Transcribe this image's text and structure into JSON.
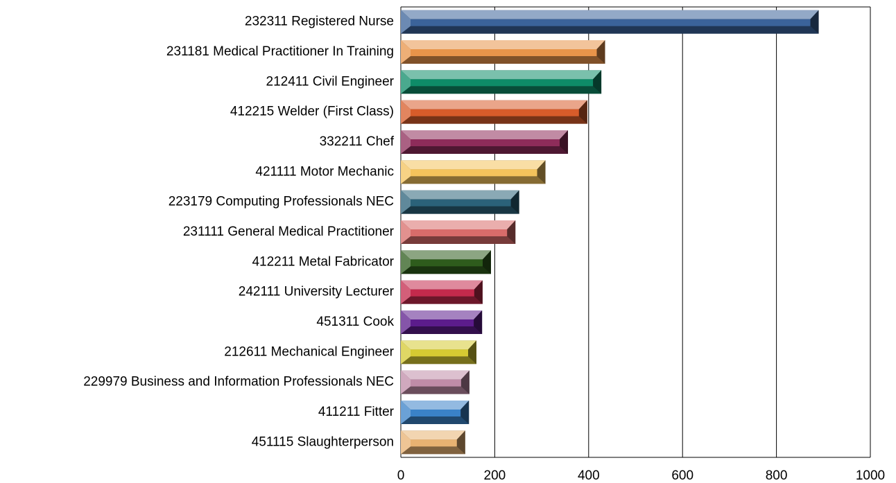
{
  "chart_data": {
    "type": "bar",
    "orientation": "horizontal",
    "categories": [
      "232311 Registered Nurse",
      "231181 Medical Practitioner In Training",
      "212411 Civil Engineer",
      "412215 Welder (First Class)",
      "332211 Chef",
      "421111 Motor Mechanic",
      "223179 Computing Professionals NEC",
      "231111 General Medical Practitioner",
      "412211 Metal Fabricator",
      "242111 University Lecturer",
      "451311 Cook",
      "212611 Mechanical Engineer",
      "229979 Business and Information Professionals NEC",
      "411211 Fitter",
      "451115 Slaughterperson"
    ],
    "values": [
      890,
      435,
      427,
      397,
      356,
      308,
      252,
      244,
      192,
      174,
      173,
      161,
      146,
      145,
      137
    ],
    "colors": [
      "#3b639a",
      "#e8944a",
      "#0e8c68",
      "#d85c2a",
      "#8e2c5a",
      "#f4c35c",
      "#2b6279",
      "#d86c6a",
      "#2e5c1c",
      "#c42a4c",
      "#5c1c8c",
      "#d6ca32",
      "#c08ca8",
      "#3a82c8",
      "#e8b272"
    ],
    "xlim": [
      0,
      1000
    ],
    "xticks": [
      0,
      200,
      400,
      600,
      800,
      1000
    ],
    "grid": true
  }
}
